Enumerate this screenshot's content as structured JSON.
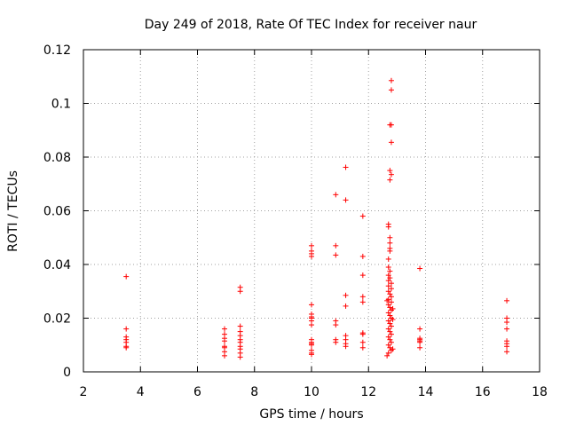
{
  "chart_data": {
    "type": "scatter",
    "title": "Day 249 of 2018, Rate Of TEC Index for receiver naur",
    "xlabel": "GPS time / hours",
    "ylabel": "ROTI / TECUs",
    "xlim": [
      2,
      18
    ],
    "ylim": [
      0,
      0.12
    ],
    "xticks": [
      "2",
      "4",
      "6",
      "8",
      "10",
      "12",
      "14",
      "16",
      "18"
    ],
    "yticks": [
      "0",
      "0.02",
      "0.04",
      "0.06",
      "0.08",
      "0.1",
      "0.12"
    ],
    "grid": true,
    "marker": "+",
    "color": "#ff0000",
    "series": [
      {
        "name": "ROTI",
        "points": [
          [
            3.5,
            0.0355
          ],
          [
            3.5,
            0.016
          ],
          [
            3.5,
            0.013
          ],
          [
            3.5,
            0.012
          ],
          [
            3.5,
            0.011
          ],
          [
            3.5,
            0.0095
          ],
          [
            3.5,
            0.009
          ],
          [
            6.95,
            0.016
          ],
          [
            6.95,
            0.014
          ],
          [
            6.95,
            0.0125
          ],
          [
            6.95,
            0.0115
          ],
          [
            6.95,
            0.0095
          ],
          [
            6.95,
            0.009
          ],
          [
            6.95,
            0.0075
          ],
          [
            6.95,
            0.006
          ],
          [
            7.5,
            0.0315
          ],
          [
            7.5,
            0.03
          ],
          [
            7.5,
            0.017
          ],
          [
            7.5,
            0.015
          ],
          [
            7.5,
            0.0135
          ],
          [
            7.5,
            0.012
          ],
          [
            7.5,
            0.011
          ],
          [
            7.5,
            0.0095
          ],
          [
            7.5,
            0.0085
          ],
          [
            7.5,
            0.007
          ],
          [
            7.5,
            0.0055
          ],
          [
            10.0,
            0.047
          ],
          [
            10.0,
            0.045
          ],
          [
            10.0,
            0.044
          ],
          [
            10.0,
            0.043
          ],
          [
            10.0,
            0.025
          ],
          [
            10.0,
            0.0215
          ],
          [
            10.0,
            0.0205
          ],
          [
            10.0,
            0.02
          ],
          [
            10.0,
            0.019
          ],
          [
            10.0,
            0.0175
          ],
          [
            10.0,
            0.012
          ],
          [
            10.0,
            0.011
          ],
          [
            10.0,
            0.0105
          ],
          [
            10.0,
            0.01
          ],
          [
            10.0,
            0.008
          ],
          [
            10.0,
            0.007
          ],
          [
            10.0,
            0.0065
          ],
          [
            10.85,
            0.066
          ],
          [
            10.85,
            0.047
          ],
          [
            10.85,
            0.0435
          ],
          [
            10.85,
            0.019
          ],
          [
            10.85,
            0.0175
          ],
          [
            10.85,
            0.012
          ],
          [
            10.85,
            0.011
          ],
          [
            11.2,
            0.0762
          ],
          [
            11.2,
            0.064
          ],
          [
            11.2,
            0.0285
          ],
          [
            11.2,
            0.0245
          ],
          [
            11.2,
            0.0135
          ],
          [
            11.2,
            0.012
          ],
          [
            11.2,
            0.0105
          ],
          [
            11.2,
            0.0095
          ],
          [
            11.8,
            0.058
          ],
          [
            11.8,
            0.043
          ],
          [
            11.8,
            0.036
          ],
          [
            11.8,
            0.028
          ],
          [
            11.8,
            0.026
          ],
          [
            11.8,
            0.0145
          ],
          [
            11.8,
            0.014
          ],
          [
            11.8,
            0.011
          ],
          [
            11.8,
            0.009
          ],
          [
            12.8,
            0.1085
          ],
          [
            12.8,
            0.105
          ],
          [
            12.75,
            0.092
          ],
          [
            12.8,
            0.092
          ],
          [
            12.8,
            0.0855
          ],
          [
            12.75,
            0.075
          ],
          [
            12.8,
            0.0735
          ],
          [
            12.75,
            0.0715
          ],
          [
            12.7,
            0.055
          ],
          [
            12.7,
            0.054
          ],
          [
            12.75,
            0.05
          ],
          [
            12.75,
            0.048
          ],
          [
            12.75,
            0.046
          ],
          [
            12.75,
            0.045
          ],
          [
            12.7,
            0.042
          ],
          [
            12.7,
            0.039
          ],
          [
            12.75,
            0.0375
          ],
          [
            12.7,
            0.036
          ],
          [
            12.75,
            0.035
          ],
          [
            12.7,
            0.034
          ],
          [
            12.8,
            0.033
          ],
          [
            12.7,
            0.032
          ],
          [
            12.8,
            0.031
          ],
          [
            12.7,
            0.03
          ],
          [
            12.75,
            0.029
          ],
          [
            12.8,
            0.028
          ],
          [
            12.7,
            0.027
          ],
          [
            12.8,
            0.026
          ],
          [
            12.7,
            0.025
          ],
          [
            12.75,
            0.024
          ],
          [
            12.8,
            0.023
          ],
          [
            12.7,
            0.022
          ],
          [
            12.75,
            0.021
          ],
          [
            12.8,
            0.02
          ],
          [
            12.7,
            0.019
          ],
          [
            12.75,
            0.018
          ],
          [
            12.8,
            0.017
          ],
          [
            12.7,
            0.016
          ],
          [
            12.75,
            0.015
          ],
          [
            12.8,
            0.014
          ],
          [
            12.7,
            0.013
          ],
          [
            12.75,
            0.012
          ],
          [
            12.8,
            0.011
          ],
          [
            12.7,
            0.01
          ],
          [
            12.75,
            0.009
          ],
          [
            12.8,
            0.008
          ],
          [
            12.7,
            0.007
          ],
          [
            12.65,
            0.006
          ],
          [
            12.85,
            0.0195
          ],
          [
            12.85,
            0.0235
          ],
          [
            12.65,
            0.0265
          ],
          [
            12.85,
            0.0085
          ],
          [
            13.8,
            0.0385
          ],
          [
            13.8,
            0.016
          ],
          [
            13.8,
            0.0125
          ],
          [
            13.8,
            0.012
          ],
          [
            13.8,
            0.0115
          ],
          [
            13.8,
            0.011
          ],
          [
            13.8,
            0.009
          ],
          [
            16.85,
            0.0265
          ],
          [
            16.85,
            0.02
          ],
          [
            16.85,
            0.0185
          ],
          [
            16.85,
            0.016
          ],
          [
            16.85,
            0.0115
          ],
          [
            16.85,
            0.0105
          ],
          [
            16.85,
            0.0095
          ],
          [
            16.85,
            0.0075
          ]
        ]
      }
    ]
  }
}
